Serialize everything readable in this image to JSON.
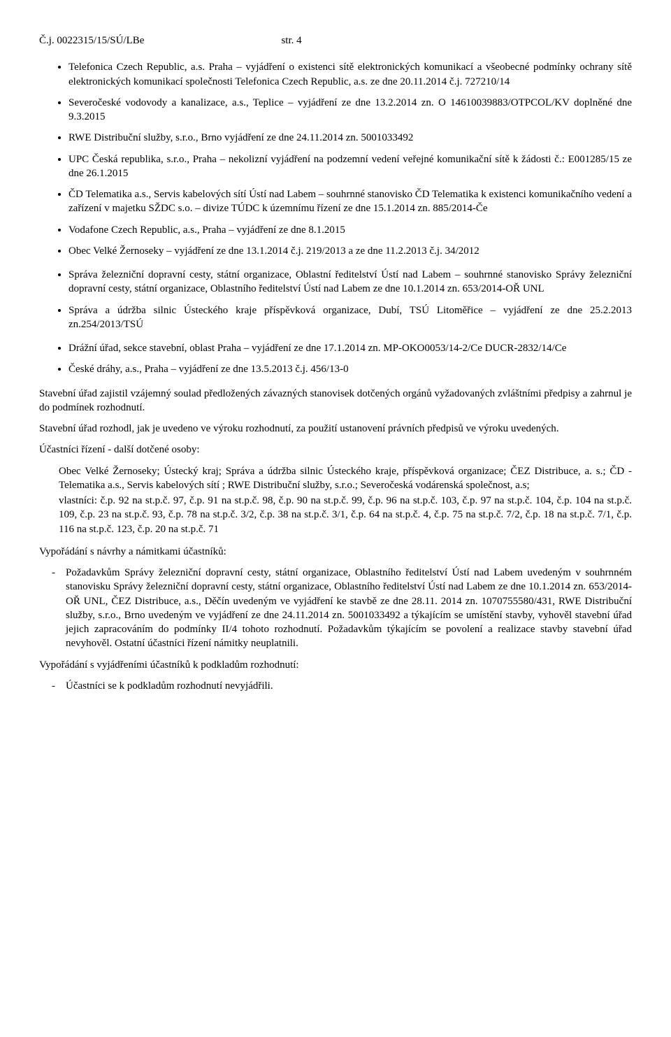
{
  "header": {
    "ref": "Č.j. 0022315/15/SÚ/LBe",
    "page": "str. 4"
  },
  "bullets1": [
    "Telefonica Czech Republic, a.s. Praha – vyjádření o existenci sítě elektronických komunikací a všeobecné podmínky ochrany sítě elektronických komunikací společnosti Telefonica Czech Republic, a.s. ze dne 20.11.2014 č.j. 727210/14",
    "Severočeské vodovody a kanalizace, a.s., Teplice – vyjádření ze dne 13.2.2014 zn. O 14610039883/OTPCOL/KV doplněné dne 9.3.2015",
    "RWE Distribuční služby, s.r.o., Brno vyjádření ze dne 24.11.2014 zn. 5001033492",
    "UPC Česká republika, s.r.o., Praha – nekolizní vyjádření na podzemní vedení veřejné komunikační sítě k žádosti č.: E001285/15 ze dne 26.1.2015",
    "ČD Telematika a.s., Servis kabelových sítí Ústí nad Labem – souhrnné stanovisko ČD Telematika k existenci komunikačního vedení a zařízení v majetku SŽDC s.o. – divize TÚDC k územnímu řízení ze dne 15.1.2014 zn. 885/2014-Če",
    "Vodafone Czech Republic, a.s., Praha – vyjádření ze dne 8.1.2015",
    "Obec Velké Žernoseky – vyjádření ze dne 13.1.2014 č.j. 219/2013 a ze dne 11.2.2013 č.j. 34/2012"
  ],
  "bullets2": [
    "Správa železniční dopravní cesty, státní organizace, Oblastní ředitelství Ústí nad Labem – souhrnné stanovisko Správy železniční dopravní cesty, státní organizace, Oblastního ředitelství Ústí  nad Labem ze dne 10.1.2014 zn. 653/2014-OŘ UNL",
    "Správa a údržba silnic Ústeckého kraje příspěvková organizace, Dubí, TSÚ Litoměřice – vyjádření ze dne 25.2.2013 zn.254/2013/TSÚ"
  ],
  "bullets3": [
    "Drážní úřad, sekce stavební, oblast Praha – vyjádření ze dne 17.1.2014 zn. MP-OKO0053/14-2/Ce DUCR-2832/14/Ce",
    "České dráhy, a.s., Praha – vyjádření ze dne 13.5.2013 č.j. 456/13-0"
  ],
  "para1": "Stavební úřad zajistil vzájemný soulad předložených závazných stanovisek dotčených orgánů vyžadovaných zvláštními předpisy a zahrnul je do podmínek rozhodnutí.",
  "para2": "Stavební úřad rozhodl, jak je uvedeno ve výroku rozhodnutí, za použití ustanovení právních předpisů ve výroku uvedených.",
  "para3": "Účastníci řízení - další dotčené osoby:",
  "indent": {
    "l1": "Obec Velké Žernoseky; Ústecký kraj;  Správa a údržba silnic Ústeckého kraje, příspěvková organizace; ČEZ Distribuce, a. s.;  ČD - Telematika a.s., Servis kabelových sítí ; RWE Distribuční služby, s.r.o.; Severočeská vodárenská společnost, a.s;",
    "l2": "vlastníci: č.p. 92 na st.p.č. 97, č.p. 91 na st.p.č. 98, č.p. 90 na st.p.č. 99, č.p. 96 na st.p.č. 103, č.p. 97 na st.p.č. 104, č.p. 104 na st.p.č. 109, č.p. 23 na st.p.č. 93, č.p. 78 na st.p.č. 3/2, č.p. 38 na st.p.č. 3/1, č.p. 64 na st.p.č. 4, č.p. 75 na st.p.č. 7/2, č.p. 18 na st.p.č. 7/1, č.p. 116 na st.p.č. 123, č.p. 20 na st.p.č. 71"
  },
  "para4": "Vypořádání s návrhy a námitkami účastníků:",
  "dash1": "Požadavkům Správy železniční dopravní cesty, státní organizace, Oblastního ředitelství Ústí nad Labem uvedeným v souhrnném stanovisku Správy železniční dopravní cesty, státní organizace, Oblastního ředitelství Ústí  nad Labem ze dne 10.1.2014 zn. 653/2014-OŘ UNL, ČEZ Distribuce, a.s., Děčín uvedeným ve vyjádření ke stavbě ze dne 28.11. 2014 zn. 1070755580/431, RWE Distribuční služby, s.r.o., Brno uvedeným ve vyjádření ze dne 24.11.2014 zn. 5001033492 a týkajícím se umístění stavby, vyhověl stavební úřad jejich zapracováním do podmínky II/4 tohoto rozhodnutí. Požadavkům týkajícím se povolení a realizace stavby stavební úřad nevyhověl. Ostatní účastníci řízení námitky neuplatnili.",
  "para5": "Vypořádání s vyjádřeními účastníků k podkladům rozhodnutí:",
  "dash2": "Účastníci se k podkladům rozhodnutí nevyjádřili."
}
